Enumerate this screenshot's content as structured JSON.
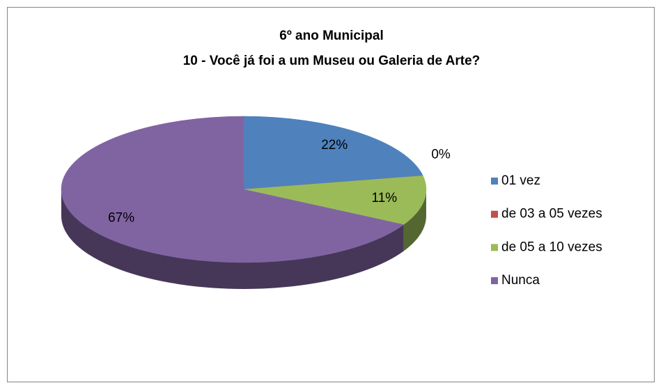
{
  "chart_data": {
    "type": "pie",
    "title": "6º ano Municipal",
    "subtitle": "10 - Você já foi a um Museu ou Galeria de Arte?",
    "categories": [
      "01 vez",
      "de 03 a 05 vezes",
      "de 05 a 10 vezes",
      "Nunca"
    ],
    "values": [
      22,
      0,
      11,
      67
    ],
    "value_labels": [
      "22%",
      "0%",
      "11%",
      "67%"
    ],
    "colors": [
      "#4f81bd",
      "#c0504d",
      "#9bbb59",
      "#8064a2"
    ],
    "legend": "right"
  }
}
